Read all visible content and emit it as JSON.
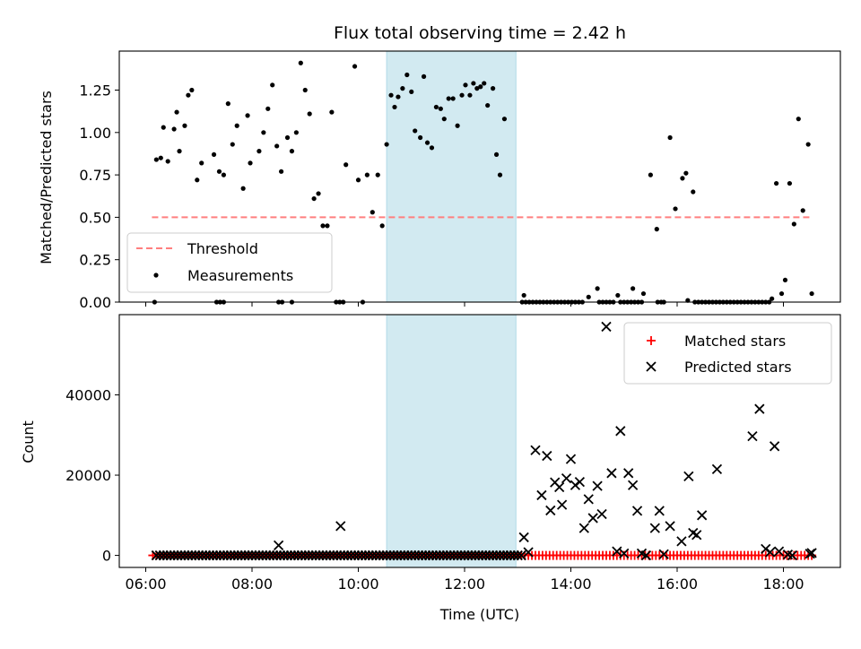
{
  "chart_data": [
    {
      "type": "scatter",
      "title": "Flux total observing time = 2.42 h",
      "xlabel": "",
      "ylabel": "Matched/Predicted stars",
      "xlim": [
        "06:00",
        "19:00"
      ],
      "ylim": [
        0,
        1.48
      ],
      "xticks": [
        "06:00",
        "08:00",
        "10:00",
        "12:00",
        "14:00",
        "16:00",
        "18:00"
      ],
      "xtick_labels_shown": false,
      "yticks": [
        0.0,
        0.25,
        0.5,
        0.75,
        1.0,
        1.25
      ],
      "ytick_labels": [
        "0.00",
        "0.25",
        "0.50",
        "0.75",
        "1.00",
        "1.25"
      ],
      "shaded_span": {
        "start": "10:32",
        "end": "12:58",
        "color": "#add8e6"
      },
      "legend_position": "lower-left",
      "threshold": {
        "name": "Threshold",
        "y": 0.5,
        "x_start": "06:07",
        "x_end": "18:33",
        "color": "#ff7f7f",
        "style": "dashed"
      },
      "series": [
        {
          "name": "Measurements",
          "color": "#000000",
          "marker": "dot",
          "points": [
            [
              "06:12",
              0.84
            ],
            [
              "06:17",
              0.85
            ],
            [
              "06:20",
              1.03
            ],
            [
              "06:25",
              0.83
            ],
            [
              "06:32",
              1.02
            ],
            [
              "06:35",
              1.12
            ],
            [
              "06:38",
              0.89
            ],
            [
              "06:44",
              1.04
            ],
            [
              "06:48",
              1.22
            ],
            [
              "06:52",
              1.25
            ],
            [
              "06:58",
              0.72
            ],
            [
              "07:03",
              0.82
            ],
            [
              "07:17",
              0.87
            ],
            [
              "07:23",
              0.77
            ],
            [
              "07:28",
              0.75
            ],
            [
              "07:33",
              1.17
            ],
            [
              "07:38",
              0.93
            ],
            [
              "07:43",
              1.04
            ],
            [
              "07:50",
              0.67
            ],
            [
              "07:55",
              1.1
            ],
            [
              "07:58",
              0.82
            ],
            [
              "08:08",
              0.89
            ],
            [
              "08:13",
              1.0
            ],
            [
              "08:18",
              1.14
            ],
            [
              "08:23",
              1.28
            ],
            [
              "08:28",
              0.92
            ],
            [
              "08:33",
              0.77
            ],
            [
              "08:40",
              0.97
            ],
            [
              "08:45",
              0.89
            ],
            [
              "08:50",
              1.0
            ],
            [
              "08:55",
              1.41
            ],
            [
              "09:00",
              1.25
            ],
            [
              "09:05",
              1.11
            ],
            [
              "09:10",
              0.61
            ],
            [
              "09:15",
              0.64
            ],
            [
              "09:20",
              0.45
            ],
            [
              "09:25",
              0.45
            ],
            [
              "09:30",
              1.12
            ],
            [
              "09:46",
              0.81
            ],
            [
              "09:56",
              1.39
            ],
            [
              "10:00",
              0.72
            ],
            [
              "10:10",
              0.75
            ],
            [
              "10:16",
              0.53
            ],
            [
              "10:22",
              0.75
            ],
            [
              "10:27",
              0.45
            ],
            [
              "10:32",
              0.93
            ],
            [
              "10:37",
              1.22
            ],
            [
              "10:41",
              1.15
            ],
            [
              "10:45",
              1.21
            ],
            [
              "10:50",
              1.26
            ],
            [
              "10:55",
              1.34
            ],
            [
              "11:00",
              1.24
            ],
            [
              "11:04",
              1.01
            ],
            [
              "11:10",
              0.97
            ],
            [
              "11:14",
              1.33
            ],
            [
              "11:18",
              0.94
            ],
            [
              "11:23",
              0.91
            ],
            [
              "11:28",
              1.15
            ],
            [
              "11:33",
              1.14
            ],
            [
              "11:37",
              1.08
            ],
            [
              "11:42",
              1.2
            ],
            [
              "11:47",
              1.2
            ],
            [
              "11:52",
              1.04
            ],
            [
              "11:57",
              1.22
            ],
            [
              "12:01",
              1.28
            ],
            [
              "12:06",
              1.22
            ],
            [
              "12:10",
              1.29
            ],
            [
              "12:14",
              1.26
            ],
            [
              "12:18",
              1.27
            ],
            [
              "12:22",
              1.29
            ],
            [
              "12:26",
              1.16
            ],
            [
              "12:32",
              1.26
            ],
            [
              "12:36",
              0.87
            ],
            [
              "12:40",
              0.75
            ],
            [
              "12:45",
              1.08
            ],
            [
              "13:07",
              0.04
            ],
            [
              "14:20",
              0.03
            ],
            [
              "14:30",
              0.08
            ],
            [
              "14:53",
              0.04
            ],
            [
              "15:10",
              0.08
            ],
            [
              "15:22",
              0.05
            ],
            [
              "15:30",
              0.75
            ],
            [
              "15:37",
              0.43
            ],
            [
              "15:45",
              0.0
            ],
            [
              "15:52",
              0.97
            ],
            [
              "15:58",
              0.55
            ],
            [
              "16:06",
              0.73
            ],
            [
              "16:10",
              0.76
            ],
            [
              "16:18",
              0.65
            ],
            [
              "16:12",
              0.01
            ],
            [
              "17:47",
              0.02
            ],
            [
              "17:52",
              0.7
            ],
            [
              "17:58",
              0.05
            ],
            [
              "18:02",
              0.13
            ],
            [
              "18:07",
              0.7
            ],
            [
              "18:12",
              0.46
            ],
            [
              "18:17",
              1.08
            ],
            [
              "18:22",
              0.54
            ],
            [
              "18:28",
              0.93
            ],
            [
              "18:32",
              0.05
            ]
          ]
        },
        {
          "name": "",
          "color": "#000000",
          "marker": "dot",
          "zero_runs": [
            [
              "06:10",
              "06:12"
            ],
            [
              "07:20",
              "07:28"
            ],
            [
              "08:30",
              "08:35"
            ],
            [
              "08:45",
              "08:48"
            ],
            [
              "09:35",
              "09:45"
            ],
            [
              "10:05",
              "10:07"
            ],
            [
              "13:05",
              "14:15"
            ],
            [
              "14:32",
              "14:48"
            ],
            [
              "14:56",
              "15:20"
            ],
            [
              "15:38",
              "15:44"
            ],
            [
              "16:20",
              "17:45"
            ]
          ],
          "zero_spacing_minutes": 4
        }
      ]
    },
    {
      "type": "scatter",
      "title": "",
      "xlabel": "Time (UTC)",
      "ylabel": "Count",
      "xlim": [
        "06:00",
        "19:00"
      ],
      "ylim": [
        -3000,
        60000
      ],
      "xticks": [
        "06:00",
        "08:00",
        "10:00",
        "12:00",
        "14:00",
        "16:00",
        "18:00"
      ],
      "xtick_labels": [
        "06:00",
        "08:00",
        "10:00",
        "12:00",
        "14:00",
        "16:00",
        "18:00"
      ],
      "yticks": [
        0,
        20000,
        40000
      ],
      "ytick_labels": [
        "0",
        "20000",
        "40000"
      ],
      "shaded_span": {
        "start": "10:32",
        "end": "12:58",
        "color": "#add8e6"
      },
      "legend_position": "top-right",
      "series": [
        {
          "name": "Matched stars",
          "color": "#ff0000",
          "marker": "plus",
          "range": [
            "06:08",
            "18:34"
          ],
          "spacing_minutes": 4,
          "y": 0
        },
        {
          "name": "Predicted stars",
          "color": "#000000",
          "marker": "x",
          "zero_range": [
            "06:12",
            "13:05"
          ],
          "zero_spacing_minutes": 4,
          "points": [
            [
              "08:30",
              2500
            ],
            [
              "09:40",
              7300
            ],
            [
              "13:07",
              4500
            ],
            [
              "13:12",
              800
            ],
            [
              "13:20",
              26200
            ],
            [
              "13:27",
              15000
            ],
            [
              "13:33",
              24800
            ],
            [
              "13:37",
              11200
            ],
            [
              "13:42",
              18200
            ],
            [
              "13:47",
              17000
            ],
            [
              "13:50",
              12600
            ],
            [
              "13:55",
              19200
            ],
            [
              "14:00",
              24000
            ],
            [
              "14:05",
              17500
            ],
            [
              "14:10",
              18300
            ],
            [
              "14:15",
              6800
            ],
            [
              "14:20",
              14000
            ],
            [
              "14:25",
              9300
            ],
            [
              "14:30",
              17300
            ],
            [
              "14:35",
              10300
            ],
            [
              "14:40",
              57000
            ],
            [
              "14:46",
              20500
            ],
            [
              "14:52",
              1000
            ],
            [
              "14:56",
              31000
            ],
            [
              "15:00",
              500
            ],
            [
              "15:05",
              20500
            ],
            [
              "15:10",
              17500
            ],
            [
              "15:15",
              11100
            ],
            [
              "15:20",
              500
            ],
            [
              "15:25",
              0
            ],
            [
              "15:35",
              6800
            ],
            [
              "15:40",
              11100
            ],
            [
              "15:45",
              300
            ],
            [
              "15:52",
              7300
            ],
            [
              "16:05",
              3500
            ],
            [
              "16:13",
              19700
            ],
            [
              "16:18",
              5600
            ],
            [
              "16:22",
              5100
            ],
            [
              "16:28",
              10000
            ],
            [
              "16:45",
              21500
            ],
            [
              "17:25",
              29700
            ],
            [
              "17:33",
              36500
            ],
            [
              "17:40",
              1600
            ],
            [
              "17:45",
              800
            ],
            [
              "17:50",
              27200
            ],
            [
              "17:55",
              1000
            ],
            [
              "18:05",
              200
            ],
            [
              "18:10",
              0
            ],
            [
              "18:30",
              400
            ],
            [
              "18:32",
              600
            ]
          ]
        }
      ]
    }
  ]
}
